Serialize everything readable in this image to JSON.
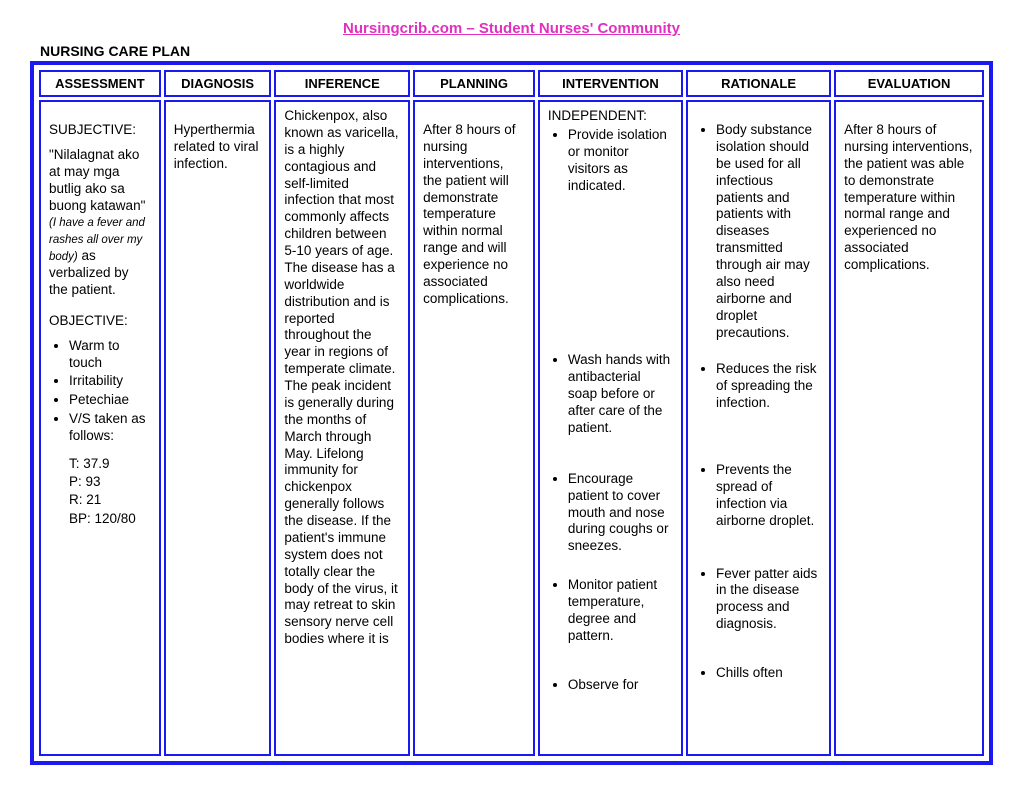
{
  "header": {
    "site_link": "Nursingcrib.com – Student Nurses' Community",
    "plan_title": "NURSING CARE PLAN"
  },
  "columns": {
    "c1": "ASSESSMENT",
    "c2": "DIAGNOSIS",
    "c3": "INFERENCE",
    "c4": "PLANNING",
    "c5": "INTERVENTION",
    "c6": "RATIONALE",
    "c7": "EVALUATION"
  },
  "assessment": {
    "subjective_label": "SUBJECTIVE:",
    "quote": "\"Nilalagnat ako at may mga butlig ako sa buong katawan\" ",
    "quote_trans": "(I have a fever and rashes all over my body)",
    "quote_tail": " as verbalized by the patient.",
    "objective_label": "OBJECTIVE:",
    "objective_items": [
      "Warm to touch",
      "Irritability",
      "Petechiae",
      "V/S taken as follows:"
    ],
    "vitals": {
      "t": "T: 37.9",
      "p": "P: 93",
      "r": "R: 21",
      "bp": "BP: 120/80"
    }
  },
  "diagnosis": "Hyperthermia related to viral infection.",
  "inference": "Chickenpox, also known as varicella, is a highly contagious and self-limited infection that most commonly affects children between 5-10 years of age. The disease has a worldwide distribution and is reported throughout the year in regions of temperate climate. The peak incident is generally during the months of March through May. Lifelong immunity for chickenpox generally follows the disease. If the patient's immune system does not totally clear the body of the virus, it may retreat to skin sensory nerve cell bodies where it is",
  "planning": "After 8 hours of nursing interventions, the patient will demonstrate temperature within normal range and will experience no associated complications.",
  "intervention": {
    "independent_label": "INDEPENDENT:",
    "items": [
      "Provide isolation or monitor visitors as indicated.",
      "Wash hands with antibacterial soap before or after care of the patient.",
      "Encourage patient to cover mouth and nose during coughs or sneezes.",
      "Monitor patient temperature, degree and pattern.",
      "Observe for"
    ],
    "gaps": [
      158,
      34,
      22,
      32,
      0
    ]
  },
  "rationale": {
    "items": [
      "Body substance isolation should be used for all infectious patients and patients with diseases transmitted through air may also need airborne and droplet precautions.",
      "Reduces the risk of spreading the infection.",
      "Prevents the spread of infection via airborne droplet.",
      "Fever patter aids in the disease process and diagnosis.",
      "Chills often"
    ],
    "gaps": [
      20,
      50,
      36,
      32,
      0
    ]
  },
  "evaluation": "After 8 hours of nursing interventions, the patient was able to demonstrate temperature within normal range and experienced no associated complications."
}
